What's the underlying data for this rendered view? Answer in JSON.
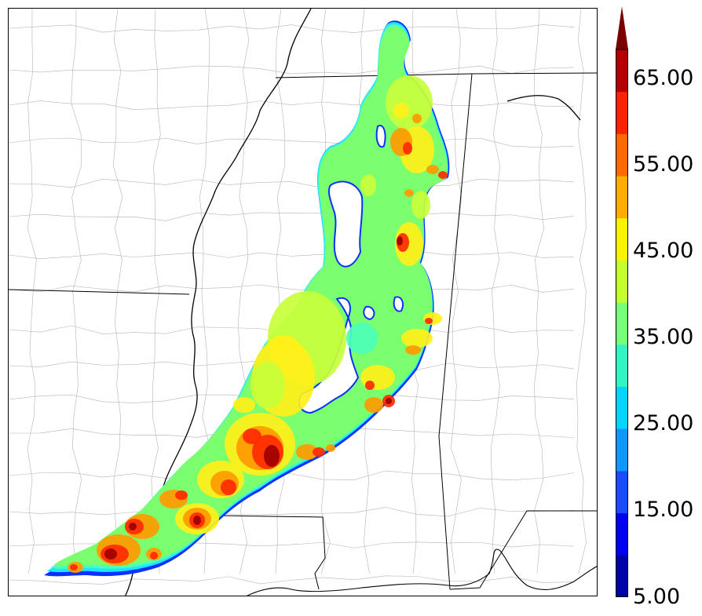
{
  "colorbar": {
    "labels": [
      "5.00",
      "15.00",
      "25.00",
      "35.00",
      "45.00",
      "55.00",
      "65.00"
    ],
    "colors": [
      "#0000a8",
      "#0000f0",
      "#1a4cff",
      "#0f96ff",
      "#00d4ff",
      "#33f2c4",
      "#78ff7a",
      "#c4ff2e",
      "#fff200",
      "#ffae00",
      "#ff6a00",
      "#ff2200",
      "#b40000"
    ],
    "extend_color": "#7a0000"
  },
  "map": {
    "field_colors": {
      "low": "#0a32ff",
      "cyan": "#1fe6ff",
      "teal": "#4dffb8",
      "green": "#7cff6e",
      "lime": "#c8ff3a",
      "yellow": "#fff01a",
      "orange": "#ff9a00",
      "red": "#ff2a00",
      "dark": "#a00000"
    }
  }
}
